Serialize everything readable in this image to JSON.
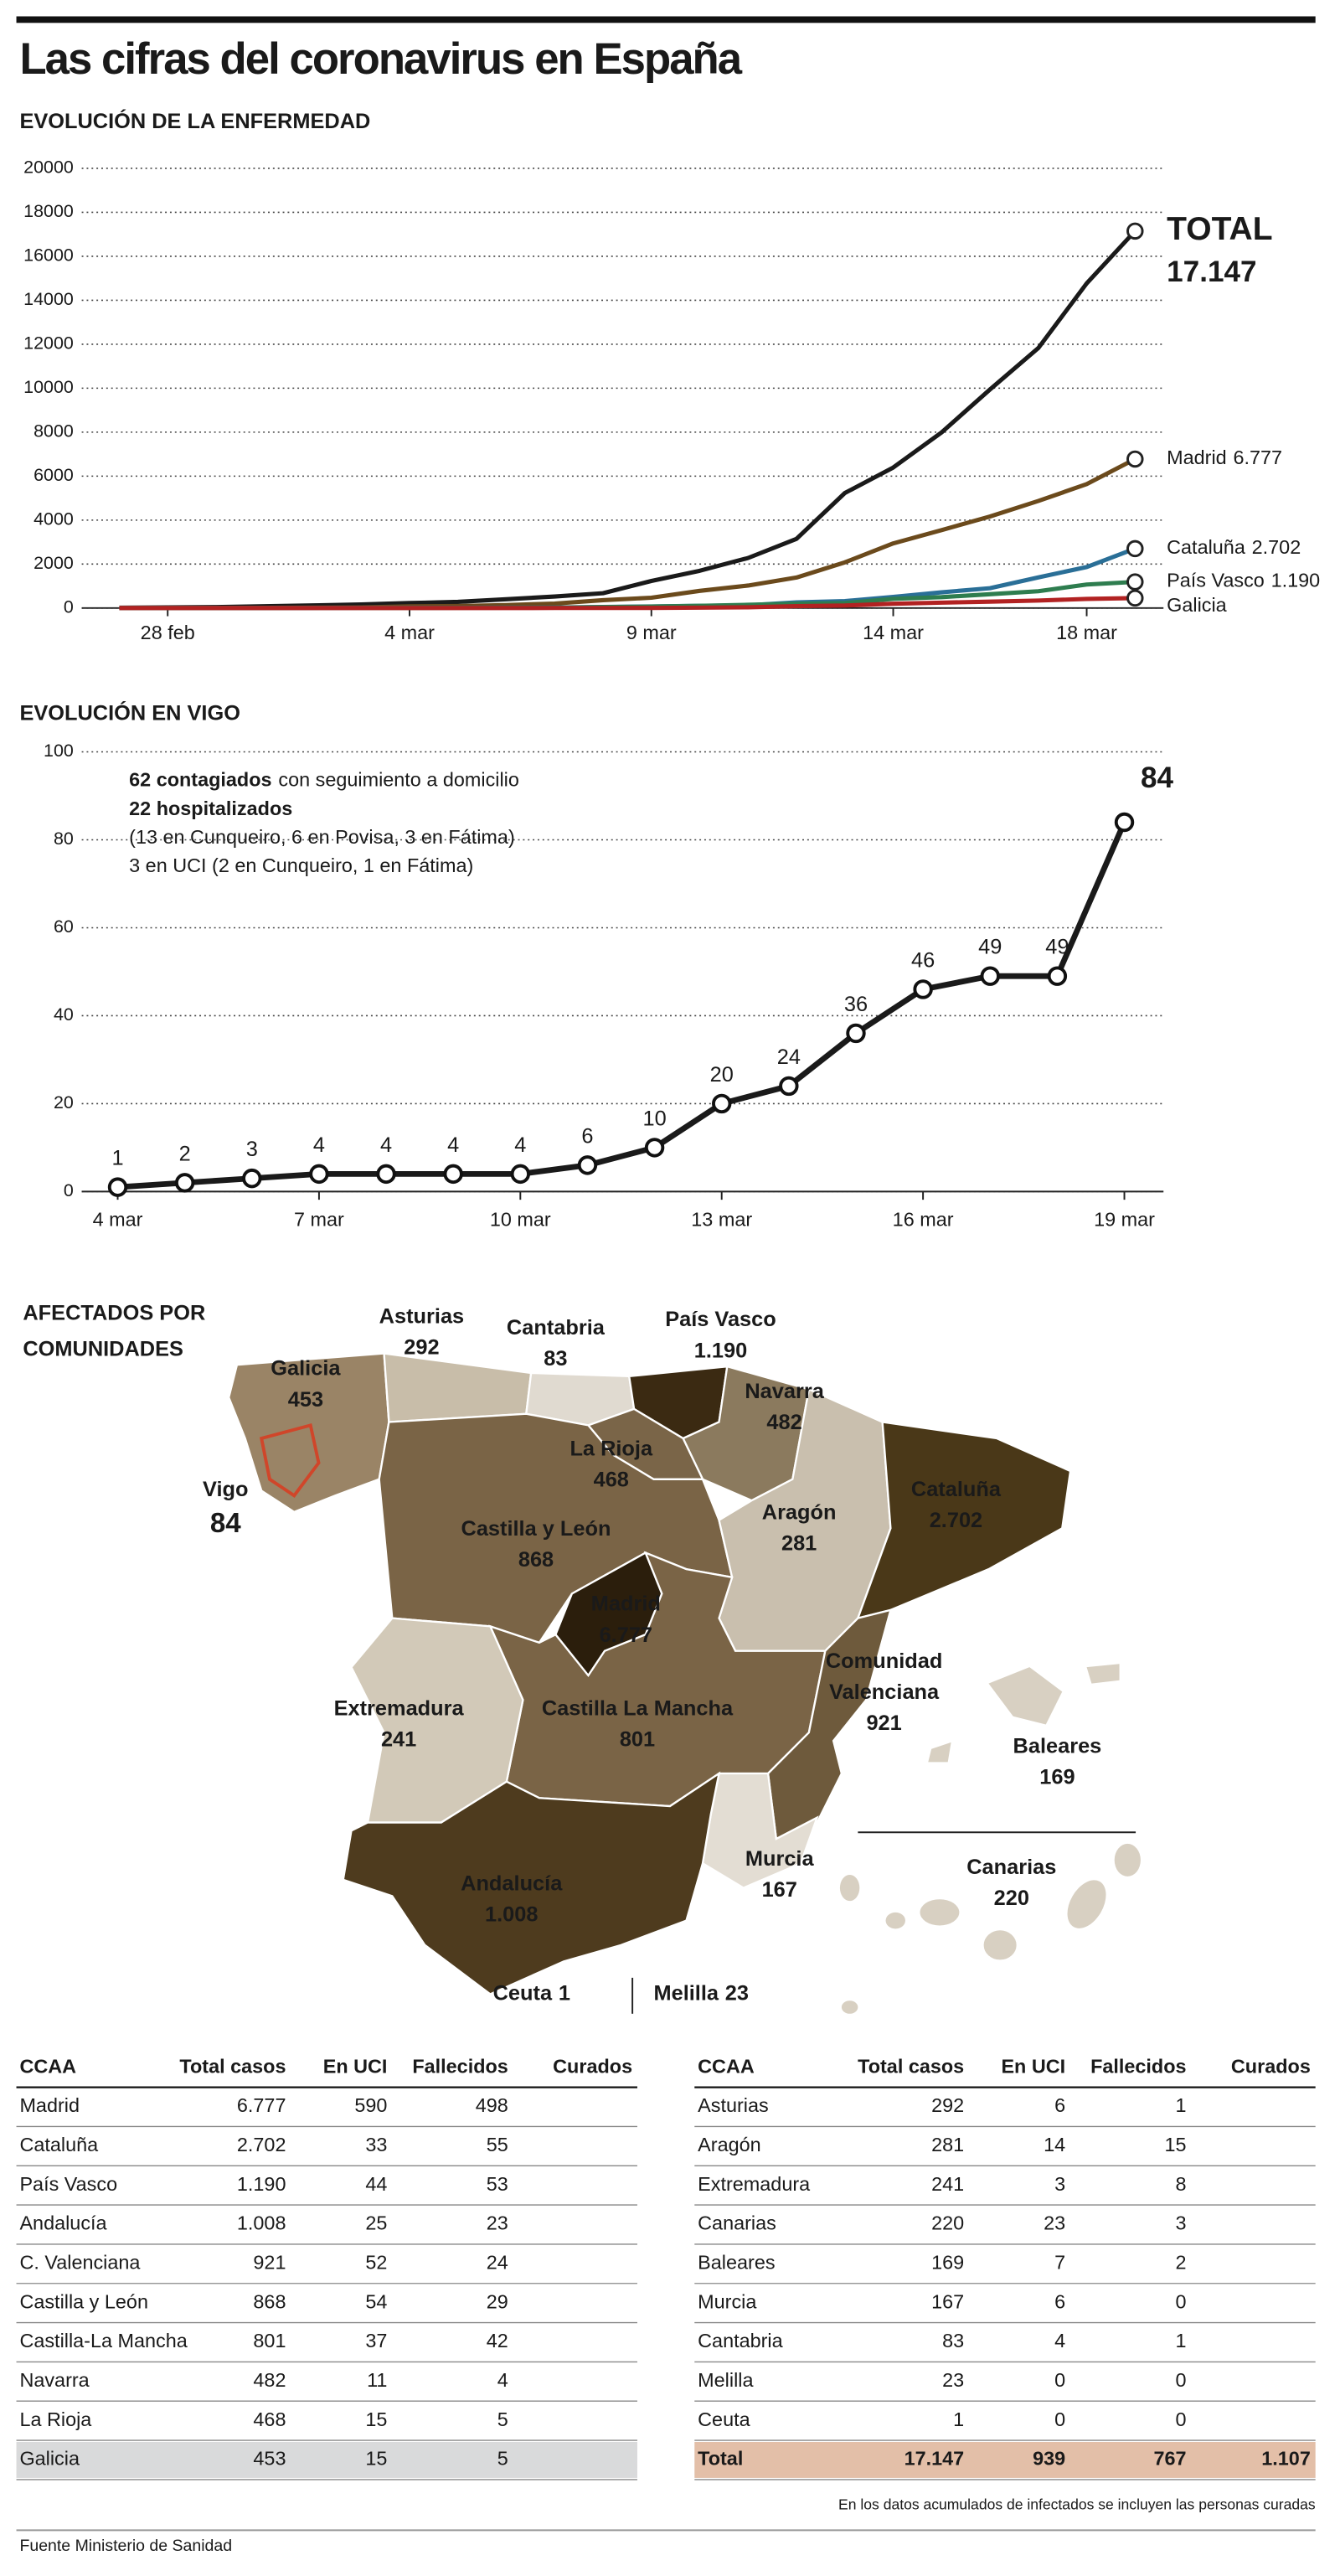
{
  "title": "Las cifras del coronavirus en España",
  "chart_data": [
    {
      "type": "line",
      "title": "EVOLUCIÓN DE LA ENFERMEDAD",
      "categories": [
        null,
        "28 feb",
        null,
        null,
        null,
        null,
        "4 mar",
        null,
        null,
        null,
        null,
        "9 mar",
        null,
        null,
        null,
        null,
        "14 mar",
        null,
        null,
        null,
        "18 mar",
        null
      ],
      "ylim": [
        0,
        20000
      ],
      "yticks": [
        0,
        2000,
        4000,
        6000,
        8000,
        10000,
        12000,
        14000,
        16000,
        18000,
        20000
      ],
      "grid": true,
      "series": [
        {
          "name": "TOTAL",
          "color": "#1a1a1a",
          "values": [
            15,
            32,
            45,
            84,
            120,
            165,
            228,
            282,
            401,
            525,
            674,
            1231,
            1695,
            2277,
            3146,
            5232,
            6391,
            7988,
            9942,
            11826,
            14769,
            17147
          ],
          "value_labels": [
            null,
            null,
            null,
            null,
            null,
            null,
            null,
            null,
            null,
            null,
            null,
            null,
            null,
            null,
            null,
            null,
            null,
            null,
            null,
            null,
            null,
            "17.147"
          ]
        },
        {
          "name": "Madrid",
          "color": "#6b4a1c",
          "values": [
            2,
            2,
            5,
            10,
            20,
            29,
            76,
            90,
            137,
            202,
            358,
            469,
            782,
            1024,
            1388,
            2078,
            2940,
            3544,
            4165,
            4871,
            5637,
            6777
          ],
          "value_labels": [
            null,
            null,
            null,
            null,
            null,
            null,
            null,
            null,
            null,
            null,
            null,
            null,
            null,
            null,
            null,
            null,
            null,
            null,
            null,
            null,
            null,
            "6.777"
          ]
        },
        {
          "name": "Cataluña",
          "color": "#2a6f97",
          "values": [
            0,
            1,
            2,
            3,
            6,
            12,
            15,
            15,
            21,
            24,
            49,
            75,
            101,
            124,
            260,
            316,
            509,
            715,
            903,
            1394,
            1866,
            2702
          ],
          "value_labels": [
            null,
            null,
            null,
            null,
            null,
            null,
            null,
            null,
            null,
            null,
            null,
            null,
            null,
            null,
            null,
            null,
            null,
            null,
            null,
            null,
            null,
            "2.702"
          ]
        },
        {
          "name": "País Vasco",
          "color": "#2e7d4f",
          "values": [
            0,
            0,
            0,
            0,
            2,
            3,
            5,
            9,
            13,
            17,
            45,
            66,
            102,
            149,
            195,
            225,
            417,
            497,
            630,
            764,
            1069,
            1190
          ],
          "value_labels": [
            null,
            null,
            null,
            null,
            null,
            null,
            null,
            null,
            null,
            null,
            null,
            null,
            null,
            null,
            null,
            null,
            null,
            null,
            null,
            null,
            null,
            "1.190"
          ]
        },
        {
          "name": "Galicia",
          "color": "#b22222",
          "values": [
            0,
            0,
            0,
            0,
            0,
            0,
            0,
            0,
            1,
            2,
            3,
            6,
            18,
            35,
            85,
            115,
            195,
            245,
            292,
            341,
            415,
            453
          ]
        }
      ]
    },
    {
      "type": "line",
      "title": "EVOLUCIÓN EN VIGO",
      "categories": [
        "4 mar",
        null,
        null,
        "7 mar",
        null,
        null,
        "10 mar",
        null,
        null,
        "13 mar",
        null,
        null,
        "16 mar",
        null,
        null,
        "19 mar"
      ],
      "values": [
        1,
        2,
        3,
        4,
        4,
        4,
        4,
        6,
        10,
        20,
        24,
        36,
        46,
        49,
        49,
        84
      ],
      "color": "#1a1a1a",
      "ylim": [
        0,
        100
      ],
      "yticks": [
        0,
        20,
        40,
        60,
        80,
        100
      ],
      "grid": true,
      "annotations": [
        {
          "bold": "62 contagiados",
          "text": "con seguimiento a domicilio"
        },
        {
          "bold": "22 hospitalizados"
        },
        {
          "text": "(13 en Cunqueiro, 6 en Povisa, 3 en Fátima)"
        },
        {
          "text": "3  en UCI (2 en Cunqueiro, 1 en Fátima)"
        }
      ]
    }
  ],
  "map": {
    "title": [
      "AFECTADOS POR",
      "COMUNIDADES"
    ],
    "regions": [
      {
        "name": "Galicia",
        "value": "453"
      },
      {
        "name": "Asturias",
        "value": "292"
      },
      {
        "name": "Cantabria",
        "value": "83"
      },
      {
        "name": "País Vasco",
        "value": "1.190"
      },
      {
        "name": "Navarra",
        "value": "482"
      },
      {
        "name": "La Rioja",
        "value": "468"
      },
      {
        "name": "Castilla y León",
        "value": "868"
      },
      {
        "name": "Aragón",
        "value": "281"
      },
      {
        "name": "Cataluña",
        "value": "2.702"
      },
      {
        "name": "Madrid",
        "value": "6.777"
      },
      {
        "name": "Extremadura",
        "value": "241"
      },
      {
        "name": "Castilla La Mancha",
        "value": "801"
      },
      {
        "name": [
          "Comunidad",
          "Valenciana"
        ],
        "value": "921"
      },
      {
        "name": "Baleares",
        "value": "169"
      },
      {
        "name": "Murcia",
        "value": "167"
      },
      {
        "name": "Canarias",
        "value": "220"
      },
      {
        "name": "Andalucía",
        "value": "1.008"
      },
      {
        "name": "Ceuta",
        "value": "1"
      },
      {
        "name": "Melilla",
        "value": "23"
      },
      {
        "name": "Vigo",
        "value": "84"
      }
    ]
  },
  "tables": [
    {
      "header": [
        "CCAA",
        "Total casos",
        "En UCI",
        "Fallecidos",
        "Curados"
      ],
      "rows": [
        [
          "Madrid",
          "6.777",
          "590",
          "498"
        ],
        [
          "Cataluña",
          "2.702",
          "33",
          "55"
        ],
        [
          "País Vasco",
          "1.190",
          "44",
          "53"
        ],
        [
          "Andalucía",
          "1.008",
          "25",
          "23"
        ],
        [
          "C. Valenciana",
          "921",
          "52",
          "24"
        ],
        [
          "Castilla y León",
          "868",
          "54",
          "29"
        ],
        [
          "Castilla-La Mancha",
          "801",
          "37",
          "42"
        ],
        [
          "Navarra",
          "482",
          "11",
          "4"
        ],
        [
          "La Rioja",
          "468",
          "15",
          "5"
        ],
        [
          "Galicia",
          "453",
          "15",
          "5"
        ]
      ]
    },
    {
      "header": [
        "CCAA",
        "Total casos",
        "En UCI",
        "Fallecidos",
        "Curados"
      ],
      "rows": [
        [
          "Asturias",
          "292",
          "6",
          "1"
        ],
        [
          "Aragón",
          "281",
          "14",
          "15"
        ],
        [
          "Extremadura",
          "241",
          "3",
          "8"
        ],
        [
          "Canarias",
          "220",
          "23",
          "3"
        ],
        [
          "Baleares",
          "169",
          "7",
          "2"
        ],
        [
          "Murcia",
          "167",
          "6",
          "0"
        ],
        [
          "Cantabria",
          "83",
          "4",
          "1"
        ],
        [
          "Melilla",
          "23",
          "0",
          "0"
        ],
        [
          "Ceuta",
          "1",
          "0",
          "0"
        ],
        [
          "Total",
          "17.147",
          "939",
          "767",
          "1.107"
        ]
      ]
    }
  ],
  "note": "En los datos acumulados de infectados se incluyen las personas curadas",
  "source": "Fuente Ministerio de Sanidad"
}
